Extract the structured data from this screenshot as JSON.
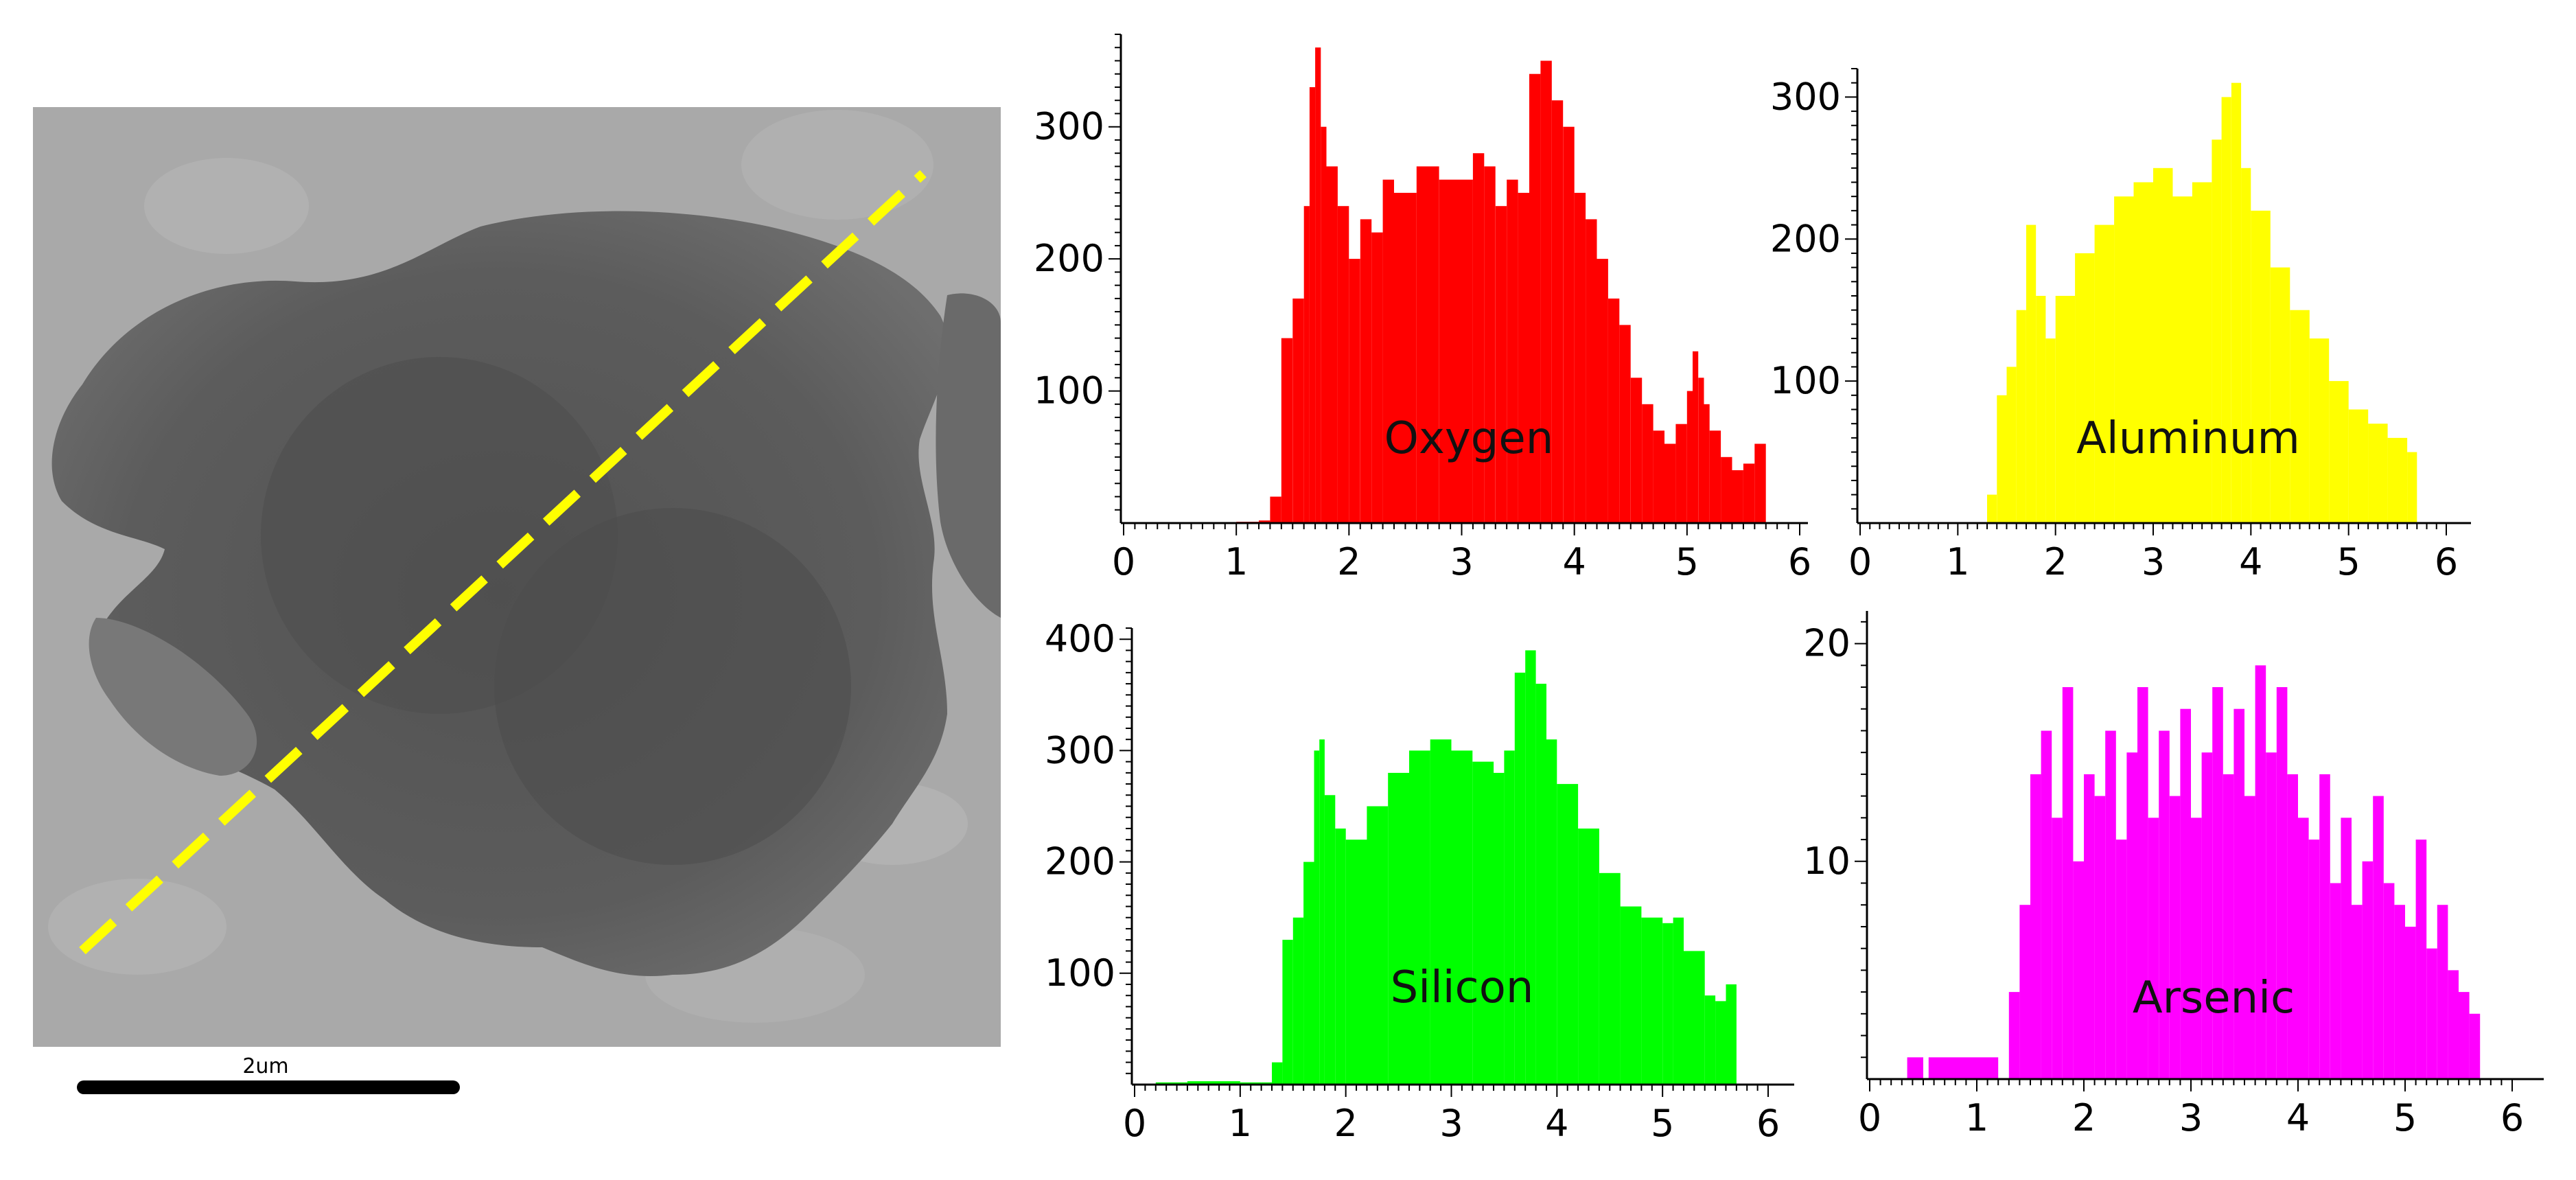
{
  "micrograph": {
    "scale_bar_label": "2um",
    "line_color": "#FFFF00"
  },
  "chart_data": [
    {
      "type": "area",
      "title": "Oxygen",
      "color": "#FF0000",
      "xlabel": "",
      "ylabel": "",
      "xlim": [
        0,
        6
      ],
      "ylim": [
        0,
        370
      ],
      "x_ticks": [
        0,
        1,
        2,
        3,
        4,
        5,
        6
      ],
      "y_ticks": [
        100,
        200,
        300
      ],
      "x": [
        0.0,
        0.5,
        1.0,
        1.2,
        1.3,
        1.4,
        1.5,
        1.6,
        1.65,
        1.7,
        1.75,
        1.8,
        1.9,
        2.0,
        2.1,
        2.2,
        2.3,
        2.4,
        2.6,
        2.8,
        3.0,
        3.1,
        3.2,
        3.3,
        3.4,
        3.5,
        3.6,
        3.7,
        3.8,
        3.9,
        4.0,
        4.1,
        4.2,
        4.3,
        4.4,
        4.5,
        4.6,
        4.7,
        4.8,
        4.9,
        5.0,
        5.05,
        5.1,
        5.15,
        5.2,
        5.3,
        5.4,
        5.5,
        5.6,
        5.7
      ],
      "values": [
        0,
        0,
        1,
        2,
        20,
        140,
        170,
        240,
        330,
        360,
        300,
        270,
        240,
        200,
        230,
        220,
        260,
        250,
        270,
        260,
        260,
        280,
        270,
        240,
        260,
        250,
        340,
        350,
        320,
        300,
        250,
        230,
        200,
        170,
        150,
        110,
        90,
        70,
        60,
        75,
        100,
        130,
        110,
        90,
        70,
        50,
        40,
        45,
        60,
        5
      ]
    },
    {
      "type": "area",
      "title": "Aluminum",
      "color": "#FFFF00",
      "xlabel": "",
      "ylabel": "",
      "xlim": [
        0,
        6
      ],
      "ylim": [
        0,
        320
      ],
      "x_ticks": [
        0,
        1,
        2,
        3,
        4,
        5,
        6
      ],
      "y_ticks": [
        100,
        200,
        300
      ],
      "x": [
        0.0,
        1.2,
        1.3,
        1.4,
        1.5,
        1.6,
        1.7,
        1.8,
        1.9,
        2.0,
        2.2,
        2.4,
        2.6,
        2.8,
        3.0,
        3.2,
        3.4,
        3.6,
        3.7,
        3.8,
        3.9,
        4.0,
        4.2,
        4.4,
        4.6,
        4.8,
        5.0,
        5.2,
        5.4,
        5.6,
        5.7
      ],
      "values": [
        0,
        0,
        20,
        90,
        110,
        150,
        210,
        160,
        130,
        160,
        190,
        210,
        230,
        240,
        250,
        230,
        240,
        270,
        300,
        310,
        250,
        220,
        180,
        150,
        130,
        100,
        80,
        70,
        60,
        50,
        0
      ]
    },
    {
      "type": "area",
      "title": "Silicon",
      "color": "#00FF00",
      "xlabel": "",
      "ylabel": "",
      "xlim": [
        0,
        6
      ],
      "ylim": [
        0,
        410
      ],
      "x_ticks": [
        0,
        1,
        2,
        3,
        4,
        5,
        6
      ],
      "y_ticks": [
        100,
        200,
        300,
        400
      ],
      "x": [
        0.2,
        0.5,
        1.0,
        1.2,
        1.3,
        1.4,
        1.5,
        1.6,
        1.7,
        1.75,
        1.8,
        1.9,
        2.0,
        2.2,
        2.4,
        2.6,
        2.8,
        3.0,
        3.2,
        3.4,
        3.5,
        3.6,
        3.7,
        3.8,
        3.9,
        4.0,
        4.2,
        4.4,
        4.6,
        4.8,
        5.0,
        5.1,
        5.2,
        5.4,
        5.5,
        5.6,
        5.7
      ],
      "values": [
        2,
        3,
        2,
        2,
        20,
        130,
        150,
        200,
        300,
        310,
        260,
        230,
        220,
        250,
        280,
        300,
        310,
        300,
        290,
        280,
        300,
        370,
        390,
        360,
        310,
        270,
        230,
        190,
        160,
        150,
        145,
        150,
        120,
        80,
        75,
        90,
        5
      ]
    },
    {
      "type": "area",
      "title": "Arsenic",
      "color": "#FF00FF",
      "xlabel": "",
      "ylabel": "",
      "xlim": [
        0,
        6
      ],
      "ylim": [
        0,
        21.5
      ],
      "x_ticks": [
        0,
        1,
        2,
        3,
        4,
        5,
        6
      ],
      "y_ticks": [
        10,
        20
      ],
      "x": [
        0.0,
        0.3,
        0.35,
        0.5,
        0.55,
        1.2,
        1.3,
        1.4,
        1.5,
        1.6,
        1.7,
        1.8,
        1.9,
        2.0,
        2.1,
        2.2,
        2.3,
        2.4,
        2.5,
        2.6,
        2.7,
        2.8,
        2.9,
        3.0,
        3.1,
        3.2,
        3.3,
        3.4,
        3.5,
        3.6,
        3.7,
        3.8,
        3.9,
        4.0,
        4.1,
        4.2,
        4.3,
        4.4,
        4.5,
        4.6,
        4.7,
        4.8,
        4.9,
        5.0,
        5.1,
        5.2,
        5.3,
        5.4,
        5.5,
        5.6,
        5.7
      ],
      "values": [
        0,
        0,
        1,
        0,
        1,
        0,
        4,
        8,
        14,
        16,
        12,
        18,
        10,
        14,
        13,
        16,
        11,
        15,
        18,
        12,
        16,
        13,
        17,
        12,
        15,
        18,
        14,
        17,
        13,
        19,
        15,
        18,
        14,
        12,
        11,
        14,
        9,
        12,
        8,
        10,
        13,
        9,
        8,
        7,
        11,
        6,
        8,
        5,
        4,
        3,
        0
      ]
    }
  ]
}
